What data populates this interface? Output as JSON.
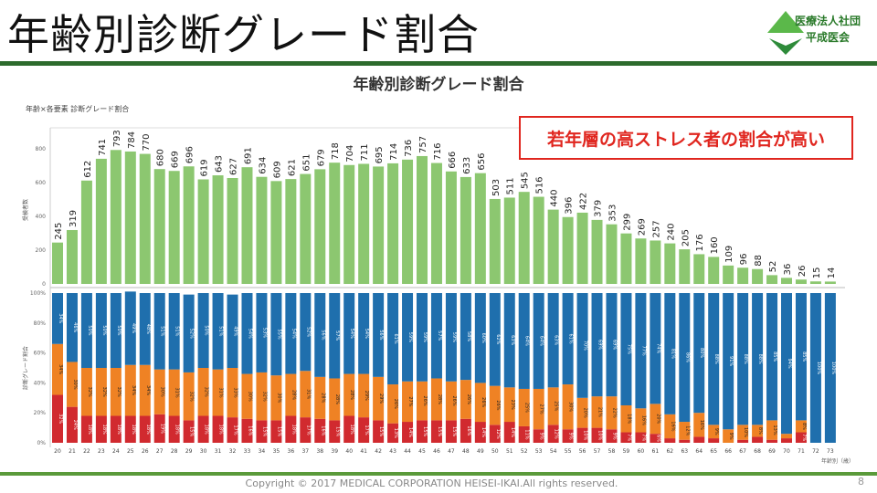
{
  "slide": {
    "title": "年齢別診断グレード割合",
    "org_line1": "医療法人社団",
    "org_line2": "平成医会",
    "callout": "若年層の高ストレス者の割合が高い",
    "copyright": "Copyright © 2017 MEDICAL CORPORATION HEISEI-IKAI.All rights reserved.",
    "page": "8"
  },
  "chart_data": {
    "title": "年齢別診断グレード割合",
    "subtitle": "年齢×各要素 診断グレード割合",
    "x_header": "受検時年齢",
    "xlabel": "年齢別（歳）",
    "colors": {
      "count": "#8cc770",
      "red": "#d12a2f",
      "orange": "#ef8224",
      "blue": "#1f6fad"
    },
    "categories": [
      20,
      21,
      22,
      23,
      24,
      25,
      26,
      27,
      28,
      29,
      30,
      31,
      32,
      33,
      34,
      35,
      36,
      37,
      38,
      39,
      40,
      41,
      42,
      43,
      44,
      45,
      46,
      47,
      48,
      49,
      50,
      51,
      52,
      53,
      54,
      55,
      56,
      57,
      58,
      59,
      60,
      61,
      62,
      63,
      64,
      65,
      66,
      67,
      68,
      69,
      70,
      71,
      72,
      73
    ],
    "top": {
      "type": "bar",
      "ylabel": "受検者数",
      "ylim": [
        0,
        850
      ],
      "yticks": [
        0,
        200,
        400,
        600,
        800
      ],
      "values": [
        245,
        319,
        612,
        741,
        793,
        784,
        770,
        680,
        669,
        696,
        619,
        643,
        627,
        691,
        634,
        609,
        621,
        651,
        679,
        718,
        704,
        711,
        695,
        714,
        736,
        757,
        716,
        666,
        633,
        656,
        503,
        511,
        545,
        516,
        440,
        396,
        422,
        379,
        353,
        299,
        269,
        257,
        240,
        205,
        176,
        160,
        109,
        96,
        88,
        52,
        36,
        26,
        15,
        14
      ]
    },
    "bottom": {
      "type": "stacked-bar",
      "ylabel": "診断グレード割合",
      "yticks": [
        "0%",
        "20%",
        "40%",
        "60%",
        "80%",
        "100%"
      ],
      "red": [
        32,
        24,
        18,
        18,
        18,
        18,
        18,
        19,
        18,
        15,
        18,
        18,
        17,
        16,
        15,
        15,
        18,
        17,
        16,
        15,
        18,
        17,
        15,
        13,
        14,
        15,
        15,
        15,
        16,
        14,
        12,
        14,
        11,
        9,
        12,
        9,
        10,
        10,
        9,
        7,
        7,
        6,
        3,
        2,
        4,
        3,
        0,
        2,
        4,
        2,
        3,
        7,
        0,
        0
      ],
      "orange": [
        34,
        30,
        32,
        32,
        32,
        34,
        34,
        30,
        31,
        32,
        32,
        31,
        33,
        30,
        32,
        30,
        28,
        31,
        28,
        28,
        28,
        29,
        29,
        26,
        27,
        26,
        28,
        26,
        26,
        26,
        26,
        23,
        25,
        27,
        25,
        30,
        20,
        21,
        22,
        18,
        16,
        20,
        16,
        12,
        16,
        9,
        9,
        10,
        8,
        13,
        3,
        8,
        0,
        0
      ],
      "blue": [
        34,
        46,
        50,
        50,
        50,
        49,
        48,
        51,
        51,
        52,
        50,
        51,
        49,
        54,
        53,
        55,
        54,
        52,
        56,
        57,
        54,
        54,
        56,
        61,
        59,
        59,
        57,
        59,
        58,
        60,
        62,
        63,
        64,
        64,
        63,
        61,
        70,
        69,
        69,
        75,
        77,
        74,
        81,
        86,
        80,
        88,
        91,
        88,
        88,
        85,
        94,
        85,
        100,
        100
      ]
    }
  }
}
